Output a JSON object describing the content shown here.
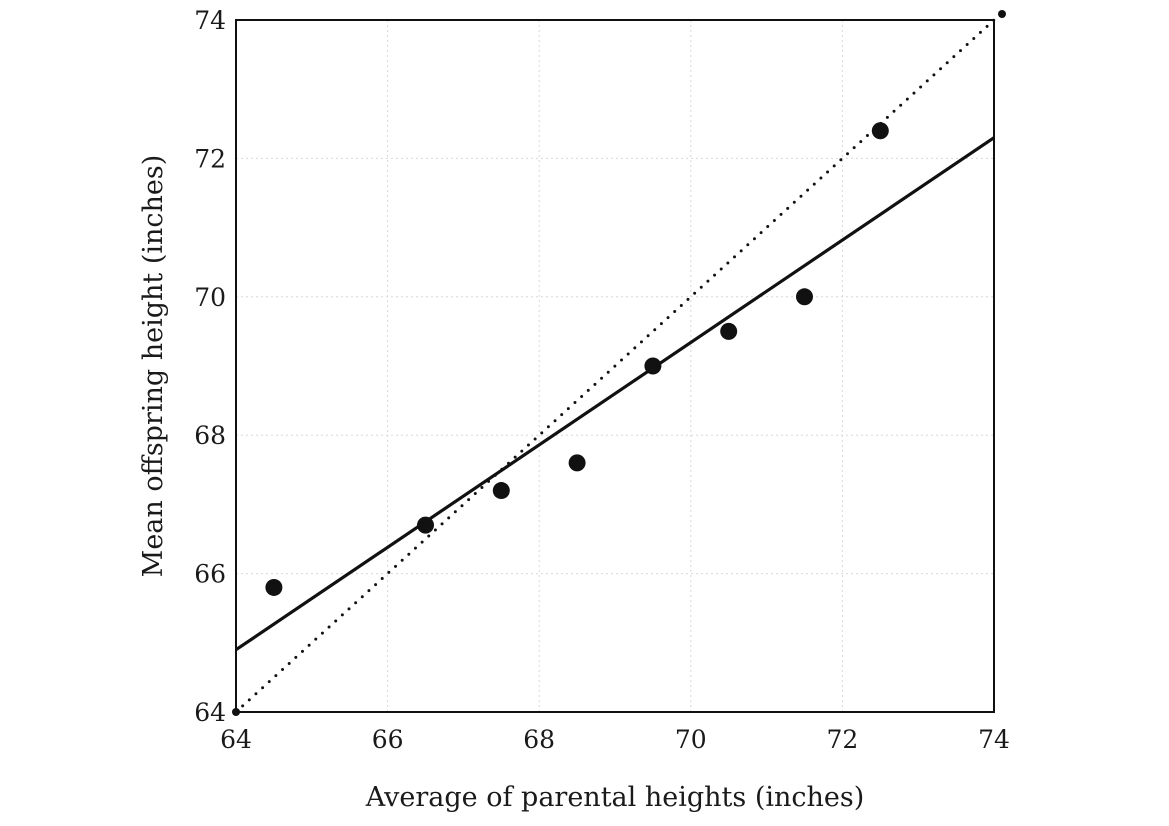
{
  "chart_data": {
    "type": "scatter",
    "title": "",
    "xlabel": "Average of parental heights (inches)",
    "ylabel": "Mean offspring height (inches)",
    "xlim": [
      64,
      74
    ],
    "ylim": [
      64,
      74
    ],
    "x_ticks": [
      64,
      66,
      68,
      70,
      72,
      74
    ],
    "y_ticks": [
      64,
      66,
      68,
      70,
      72,
      74
    ],
    "grid": true,
    "legend": "none",
    "series": [
      {
        "type": "scatter",
        "x": [
          64.5,
          66.5,
          67.5,
          68.5,
          69.5,
          70.5,
          71.5,
          72.5
        ],
        "y": [
          65.8,
          66.7,
          67.2,
          67.6,
          69.0,
          69.5,
          70.0,
          72.4
        ]
      }
    ],
    "lines": [
      {
        "style": "solid",
        "x": [
          64,
          74
        ],
        "y": [
          64.9,
          72.3
        ]
      },
      {
        "style": "dotted",
        "x": [
          64,
          74
        ],
        "y": [
          64,
          74
        ]
      }
    ],
    "colors": {
      "ink": "#111111",
      "grid": "#d8d8d8"
    }
  }
}
